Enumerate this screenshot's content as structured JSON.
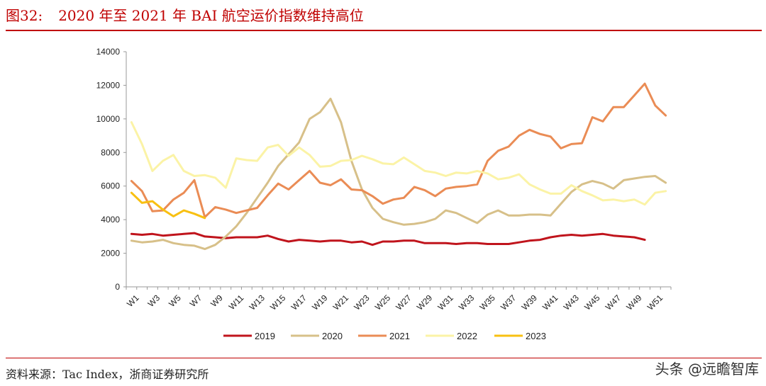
{
  "figure": {
    "number": "图32:",
    "title": "2020 年至 2021 年 BAI 航空运价指数维持高位"
  },
  "source": "资料来源：Tac Index，浙商证券研究所",
  "watermark": "头条 @远瞻智库",
  "colors": {
    "title": "#c00000",
    "2019": "#c0141c",
    "2020": "#d7c089",
    "2021": "#ea8c55",
    "2022": "#fbf3a6",
    "2023": "#f8c012"
  },
  "chart_data": {
    "type": "line",
    "title": "",
    "xlabel": "",
    "ylabel": "",
    "ylim": [
      0,
      14000
    ],
    "yticks": [
      0,
      2000,
      4000,
      6000,
      8000,
      10000,
      12000,
      14000
    ],
    "xticks": [
      "W1",
      "W3",
      "W5",
      "W7",
      "W9",
      "W11",
      "W13",
      "W15",
      "W17",
      "W19",
      "W21",
      "W23",
      "W25",
      "W27",
      "W29",
      "W31",
      "W33",
      "W35",
      "W37",
      "W39",
      "W41",
      "W43",
      "W45",
      "W47",
      "W49",
      "W51"
    ],
    "x": [
      1,
      2,
      3,
      4,
      5,
      6,
      7,
      8,
      9,
      10,
      11,
      12,
      13,
      14,
      15,
      16,
      17,
      18,
      19,
      20,
      21,
      22,
      23,
      24,
      25,
      26,
      27,
      28,
      29,
      30,
      31,
      32,
      33,
      34,
      35,
      36,
      37,
      38,
      39,
      40,
      41,
      42,
      43,
      44,
      45,
      46,
      47,
      48,
      49,
      50,
      51,
      52
    ],
    "legend_position": "bottom",
    "series": [
      {
        "name": "2019",
        "values": [
          3150,
          3100,
          3150,
          3050,
          3100,
          3150,
          3200,
          3000,
          2950,
          2900,
          2950,
          2950,
          2950,
          3050,
          2850,
          2700,
          2800,
          2750,
          2700,
          2750,
          2750,
          2650,
          2700,
          2500,
          2700,
          2700,
          2750,
          2750,
          2600,
          2600,
          2600,
          2550,
          2600,
          2600,
          2550,
          2550,
          2550,
          2650,
          2750,
          2800,
          2950,
          3050,
          3100,
          3050,
          3100,
          3150,
          3050,
          3000,
          2950,
          2800,
          null,
          null
        ]
      },
      {
        "name": "2020",
        "values": [
          2750,
          2650,
          2700,
          2800,
          2600,
          2500,
          2450,
          2250,
          2500,
          3000,
          3600,
          4400,
          5300,
          6200,
          7200,
          7900,
          8600,
          10000,
          10400,
          11200,
          9800,
          7500,
          5800,
          4700,
          4050,
          3850,
          3700,
          3750,
          3850,
          4050,
          4550,
          4400,
          4100,
          3800,
          4300,
          4550,
          4250,
          4250,
          4300,
          4300,
          4250,
          4950,
          5650,
          6100,
          6300,
          6150,
          5850,
          6350,
          6450,
          6550,
          6600,
          6200
        ]
      },
      {
        "name": "2021",
        "values": [
          6300,
          5700,
          4500,
          4550,
          5200,
          5600,
          6350,
          4150,
          4750,
          4600,
          4400,
          4550,
          4700,
          5450,
          6150,
          5800,
          6350,
          6900,
          6200,
          6050,
          6400,
          5800,
          5750,
          5400,
          4950,
          5200,
          5300,
          5950,
          5750,
          5400,
          5850,
          5950,
          6000,
          6100,
          7500,
          8100,
          8350,
          9000,
          9350,
          9100,
          8950,
          8250,
          8500,
          8550,
          10100,
          9850,
          10700,
          10700,
          11400,
          12100,
          10800,
          10200
        ]
      },
      {
        "name": "2022",
        "values": [
          9800,
          8500,
          6900,
          7500,
          7850,
          6900,
          6600,
          6650,
          6500,
          5900,
          7650,
          7550,
          7500,
          8300,
          8450,
          7800,
          8300,
          7850,
          7150,
          7200,
          7500,
          7550,
          7800,
          7600,
          7350,
          7300,
          7700,
          7300,
          6900,
          6800,
          6600,
          6800,
          6750,
          6900,
          6750,
          6400,
          6500,
          6700,
          6100,
          5800,
          5550,
          5550,
          6050,
          5700,
          5450,
          5150,
          5200,
          5100,
          5200,
          4900,
          5600,
          5700
        ]
      },
      {
        "name": "2023",
        "values": [
          5600,
          5000,
          5100,
          4600,
          4200,
          4550,
          4350,
          4100,
          null,
          null,
          null,
          null,
          null,
          null,
          null,
          null,
          null,
          null,
          null,
          null,
          null,
          null,
          null,
          null,
          null,
          null,
          null,
          null,
          null,
          null,
          null,
          null,
          null,
          null,
          null,
          null,
          null,
          null,
          null,
          null,
          null,
          null,
          null,
          null,
          null,
          null,
          null,
          null,
          null,
          null,
          null,
          null
        ]
      }
    ]
  }
}
